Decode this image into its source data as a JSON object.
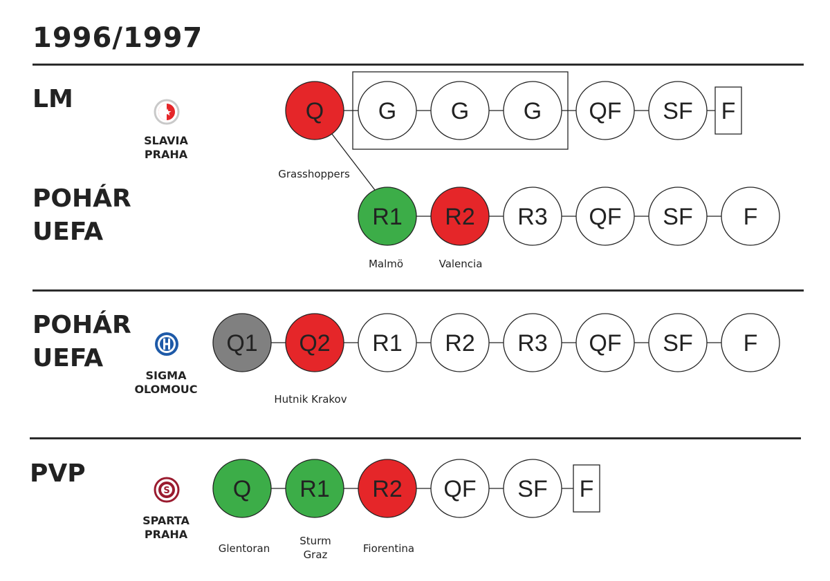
{
  "title": "1996/1997",
  "sections": {
    "lm": {
      "competition": "LM",
      "club_line1": "SLAVIA",
      "club_line2": "PRAHA",
      "nodes": [
        {
          "label": "Q",
          "color": "#e52629"
        },
        {
          "label": "G",
          "color": "#ffffff"
        },
        {
          "label": "G",
          "color": "#ffffff"
        },
        {
          "label": "G",
          "color": "#ffffff"
        },
        {
          "label": "QF",
          "color": "#ffffff"
        },
        {
          "label": "SF",
          "color": "#ffffff"
        },
        {
          "label": "F",
          "color": "#ffffff"
        }
      ],
      "opponent": "Grasshoppers"
    },
    "uefa1": {
      "competition_line1": "POHÁR",
      "competition_line2": "UEFA",
      "nodes": [
        {
          "label": "R1",
          "color": "#3cad48"
        },
        {
          "label": "R2",
          "color": "#e52629"
        },
        {
          "label": "R3",
          "color": "#ffffff"
        },
        {
          "label": "QF",
          "color": "#ffffff"
        },
        {
          "label": "SF",
          "color": "#ffffff"
        },
        {
          "label": "F",
          "color": "#ffffff"
        }
      ],
      "opponents": [
        "Malmö",
        "Valencia"
      ]
    },
    "uefa2": {
      "competition_line1": "POHÁR",
      "competition_line2": "UEFA",
      "club_line1": "SIGMA",
      "club_line2": "OLOMOUC",
      "nodes": [
        {
          "label": "Q1",
          "color": "#808080"
        },
        {
          "label": "Q2",
          "color": "#e52629"
        },
        {
          "label": "R1",
          "color": "#ffffff"
        },
        {
          "label": "R2",
          "color": "#ffffff"
        },
        {
          "label": "R3",
          "color": "#ffffff"
        },
        {
          "label": "QF",
          "color": "#ffffff"
        },
        {
          "label": "SF",
          "color": "#ffffff"
        },
        {
          "label": "F",
          "color": "#ffffff"
        }
      ],
      "opponent": "Hutnik Krakov"
    },
    "pvp": {
      "competition": "PVP",
      "club_line1": "SPARTA",
      "club_line2": "PRAHA",
      "nodes": [
        {
          "label": "Q",
          "color": "#3cad48"
        },
        {
          "label": "R1",
          "color": "#3cad48"
        },
        {
          "label": "R2",
          "color": "#e52629"
        },
        {
          "label": "QF",
          "color": "#ffffff"
        },
        {
          "label": "SF",
          "color": "#ffffff"
        },
        {
          "label": "F",
          "color": "#ffffff"
        }
      ],
      "opponents": [
        "Glentoran",
        "Sturm",
        "Graz",
        "Fiorentina"
      ]
    }
  },
  "colors": {
    "win": "#3cad48",
    "loss": "#e52629",
    "bye": "#808080",
    "line": "#222222"
  },
  "icons": {
    "slavia": "slavia-crest-icon",
    "sigma": "sigma-crest-icon",
    "sparta": "sparta-crest-icon"
  }
}
